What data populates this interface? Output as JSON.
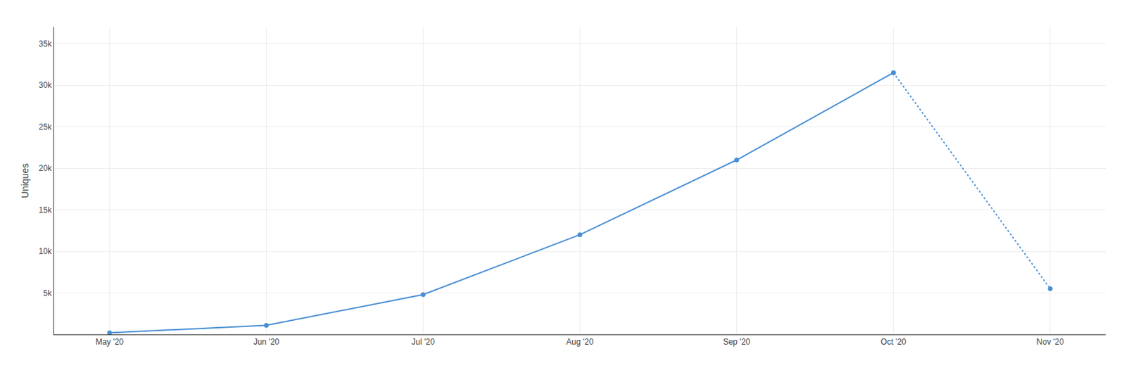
{
  "chart_data": {
    "type": "line",
    "categories": [
      "May '20",
      "Jun '20",
      "Jul '20",
      "Aug '20",
      "Sep '20",
      "Oct '20",
      "Nov '20"
    ],
    "series": [
      {
        "color": "#4a8fd4",
        "line_style": "solid",
        "marker": "circle",
        "values": [
          200,
          1100,
          4800,
          12000,
          21000,
          31500,
          null
        ]
      },
      {
        "color": "#4a8fd4",
        "line_style": "dotted",
        "marker": "circle",
        "values": [
          null,
          null,
          null,
          null,
          null,
          31500,
          5500
        ]
      }
    ],
    "y_label": "Uniques",
    "ylim": [
      0,
      37000
    ],
    "yticks": [
      {
        "value": 5000,
        "label": "5k"
      },
      {
        "value": 10000,
        "label": "10k"
      },
      {
        "value": 15000,
        "label": "15k"
      },
      {
        "value": 20000,
        "label": "20k"
      },
      {
        "value": 25000,
        "label": "25k"
      },
      {
        "value": 30000,
        "label": "30k"
      },
      {
        "value": 35000,
        "label": "35k"
      }
    ],
    "grid": true
  }
}
